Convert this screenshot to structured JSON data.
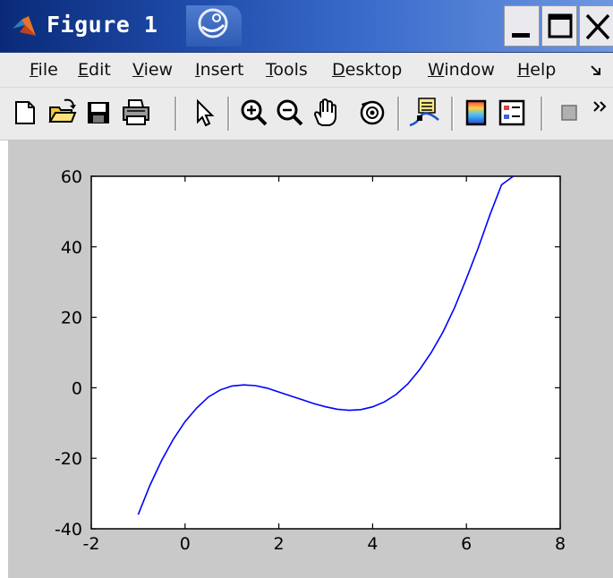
{
  "window": {
    "title": "Figure 1",
    "icons": {
      "app": "matlab-logo-icon",
      "swirl": "swirl-icon",
      "minimize": "minimize-icon",
      "maximize": "maximize-icon",
      "close": "close-icon"
    }
  },
  "menu": {
    "items": [
      {
        "label": "File",
        "mnemonic": "F"
      },
      {
        "label": "Edit",
        "mnemonic": "E"
      },
      {
        "label": "View",
        "mnemonic": "V"
      },
      {
        "label": "Insert",
        "mnemonic": "I"
      },
      {
        "label": "Tools",
        "mnemonic": "T"
      },
      {
        "label": "Desktop",
        "mnemonic": "D"
      },
      {
        "label": "Window",
        "mnemonic": "W"
      },
      {
        "label": "Help",
        "mnemonic": "H"
      }
    ],
    "overflow_icon": "menu-overflow-icon"
  },
  "toolbar": {
    "buttons": [
      "new-figure-icon",
      "open-file-icon",
      "save-icon",
      "print-icon",
      "edit-plot-arrow-icon",
      "zoom-in-icon",
      "zoom-out-icon",
      "pan-hand-icon",
      "rotate-3d-icon",
      "data-cursor-icon",
      "colorbar-icon",
      "legend-icon",
      "hide-plot-tools-icon",
      "toolbar-overflow-icon"
    ]
  },
  "colors": {
    "line": "#0000ff",
    "figure_bg": "#c9c9c9",
    "axes_bg": "#ffffff"
  },
  "chart_data": {
    "type": "line",
    "title": "",
    "xlabel": "",
    "ylabel": "",
    "xlim": [
      -2,
      8
    ],
    "ylim": [
      -40,
      60
    ],
    "xticks": [
      -2,
      0,
      2,
      4,
      6,
      8
    ],
    "yticks": [
      -40,
      -20,
      0,
      20,
      40,
      60
    ],
    "grid": false,
    "series": [
      {
        "x": [
          -1,
          -0.75,
          -0.5,
          -0.25,
          0,
          0.25,
          0.5,
          0.75,
          1,
          1.25,
          1.5,
          1.75,
          2,
          2.25,
          2.5,
          2.75,
          3,
          3.25,
          3.5,
          3.75,
          4,
          4.25,
          4.5,
          4.75,
          5,
          5.25,
          5.5,
          5.75,
          6,
          6.25,
          6.5,
          6.75,
          7
        ],
        "y": [
          -36,
          -27.7,
          -20.6,
          -14.6,
          -9.6,
          -5.7,
          -2.6,
          -0.6,
          0.5,
          0.8,
          0.6,
          -0.1,
          -1.2,
          -2.3,
          -3.4,
          -4.5,
          -5.4,
          -6.1,
          -6.4,
          -6.2,
          -5.4,
          -4.0,
          -1.9,
          1.1,
          5.1,
          10.0,
          15.8,
          22.8,
          31.0,
          39.6,
          49.0,
          57.6,
          60
        ]
      }
    ]
  }
}
